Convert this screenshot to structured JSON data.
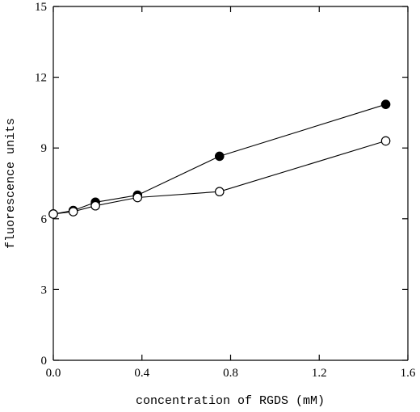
{
  "chart_data": {
    "type": "line",
    "title": "",
    "xlabel": "concentration of RGDS (mM)",
    "ylabel": "fluorescence units",
    "xlim": [
      0.0,
      1.6
    ],
    "ylim": [
      0,
      15
    ],
    "xticks": [
      "0.0",
      "0.4",
      "0.8",
      "1.2",
      "1.6"
    ],
    "yticks": [
      "0",
      "3",
      "6",
      "9",
      "12",
      "15"
    ],
    "grid": false,
    "legend": false,
    "series": [
      {
        "marker": "filled-circle",
        "color": "#000000",
        "x": [
          0.0,
          0.09,
          0.19,
          0.38,
          0.75,
          1.5
        ],
        "y": [
          6.2,
          6.35,
          6.7,
          7.0,
          8.65,
          10.85
        ]
      },
      {
        "marker": "open-circle",
        "color": "#000000",
        "x": [
          0.0,
          0.09,
          0.19,
          0.38,
          0.75,
          1.5
        ],
        "y": [
          6.2,
          6.3,
          6.55,
          6.9,
          7.15,
          9.3
        ]
      }
    ]
  }
}
